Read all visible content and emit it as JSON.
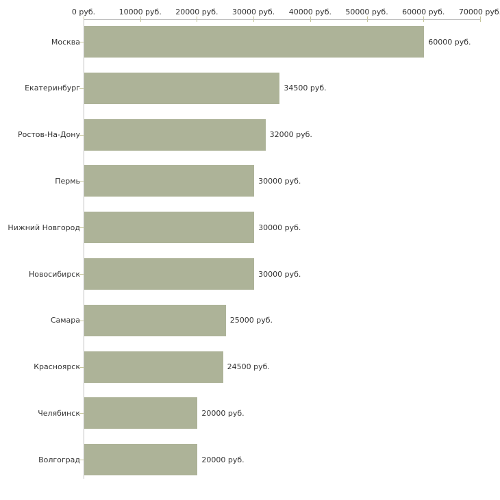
{
  "chart_data": {
    "type": "bar",
    "orientation": "horizontal",
    "title": "",
    "unit": "руб.",
    "categories": [
      "Москва",
      "Екатеринбург",
      "Ростов-На-Дону",
      "Пермь",
      "Нижний Новгород",
      "Новосибирск",
      "Самара",
      "Красноярск",
      "Челябинск",
      "Волгоград"
    ],
    "values": [
      60000,
      34500,
      32000,
      30000,
      30000,
      30000,
      25000,
      24500,
      20000,
      20000
    ],
    "value_labels": [
      "60000 руб.",
      "34500 руб.",
      "32000 руб.",
      "30000 руб.",
      "30000 руб.",
      "30000 руб.",
      "25000 руб.",
      "24500 руб.",
      "20000 руб.",
      "20000 руб."
    ],
    "x_axis": {
      "tick_labels": [
        "0 руб.",
        "10000 руб.",
        "20000 руб.",
        "30000 руб.",
        "40000 руб.",
        "50000 руб.",
        "60000 руб.",
        "70000 руб."
      ],
      "tick_values": [
        0,
        10000,
        20000,
        30000,
        40000,
        50000,
        60000,
        70000
      ],
      "min": 0,
      "max": 70000
    },
    "colors": {
      "bar": "#adb398",
      "axis_line": "#c0c0c0",
      "tick": "#c6c69a",
      "text": "#333333",
      "background": "#ffffff"
    },
    "grid": false,
    "legend": false
  }
}
